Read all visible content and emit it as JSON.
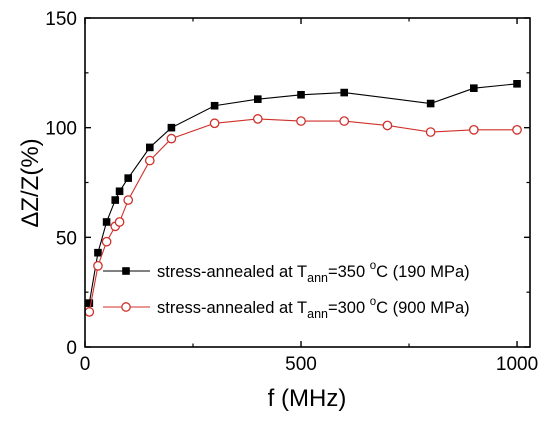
{
  "chart_data": {
    "type": "line",
    "xlabel": "f (MHz)",
    "ylabel": "ΔZ/Z(%)",
    "xlim": [
      0,
      1030
    ],
    "ylim": [
      0,
      150
    ],
    "xticks": [
      0,
      500,
      1000
    ],
    "yticks": [
      0,
      50,
      100,
      150
    ],
    "grid": false,
    "legend_position": "bottom-center",
    "series": [
      {
        "name": "stress-annealed at T_ann=350 °C (190 MPa)",
        "legend": {
          "pre": "stress-annealed at T",
          "sub": "ann",
          "mid": "=350 ",
          "sup": "o",
          "post": "C (190 MPa)"
        },
        "marker": "filled-square",
        "color": "#000000",
        "x": [
          10,
          30,
          50,
          70,
          80,
          100,
          150,
          200,
          300,
          400,
          500,
          600,
          800,
          900,
          1000
        ],
        "y": [
          20,
          43,
          57,
          67,
          71,
          77,
          91,
          100,
          110,
          113,
          115,
          116,
          111,
          118,
          120
        ]
      },
      {
        "name": "stress-annealed at T_ann=300 °C (900 MPa)",
        "legend": {
          "pre": "stress-annealed at T",
          "sub": "ann",
          "mid": "=300 ",
          "sup": "o",
          "post": "C (900 MPa)"
        },
        "marker": "open-circle",
        "color": "#d0302a",
        "x": [
          10,
          30,
          50,
          70,
          80,
          100,
          150,
          200,
          300,
          400,
          500,
          600,
          700,
          800,
          900,
          1000
        ],
        "y": [
          16,
          37,
          48,
          55,
          57,
          67,
          85,
          95,
          102,
          104,
          103,
          103,
          101,
          98,
          99,
          99
        ]
      }
    ]
  }
}
